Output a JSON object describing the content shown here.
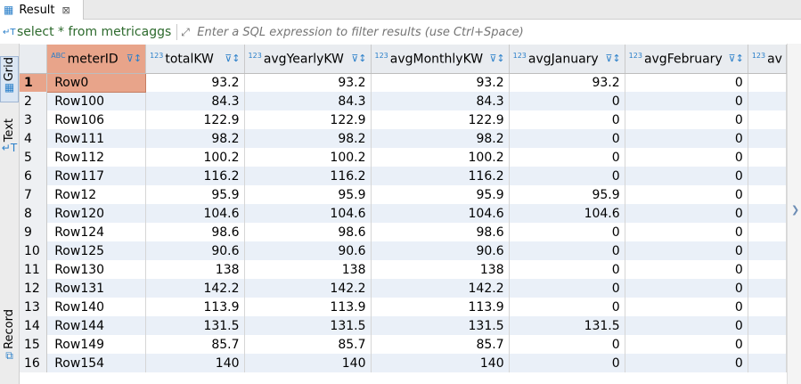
{
  "tab": {
    "title": "Result",
    "close": "⊠"
  },
  "filter": {
    "sql": "select * from metricaggs",
    "placeholder": "Enter a SQL expression to filter results (use Ctrl+Space)"
  },
  "side_tabs": {
    "grid": "Grid",
    "text": "Text",
    "record": "Record"
  },
  "columns": [
    {
      "label": "meterID",
      "type": "ABC"
    },
    {
      "label": "totalKW",
      "type": "123"
    },
    {
      "label": "avgYearlyKW",
      "type": "123"
    },
    {
      "label": "avgMonthlyKW",
      "type": "123"
    },
    {
      "label": "avgJanuary",
      "type": "123"
    },
    {
      "label": "avgFebruary",
      "type": "123"
    },
    {
      "label": "av",
      "type": "123"
    }
  ],
  "rows": [
    {
      "n": "1",
      "cells": [
        "Row0",
        "93.2",
        "93.2",
        "93.2",
        "93.2",
        "0"
      ]
    },
    {
      "n": "2",
      "cells": [
        "Row100",
        "84.3",
        "84.3",
        "84.3",
        "0",
        "0"
      ]
    },
    {
      "n": "3",
      "cells": [
        "Row106",
        "122.9",
        "122.9",
        "122.9",
        "0",
        "0"
      ]
    },
    {
      "n": "4",
      "cells": [
        "Row111",
        "98.2",
        "98.2",
        "98.2",
        "0",
        "0"
      ]
    },
    {
      "n": "5",
      "cells": [
        "Row112",
        "100.2",
        "100.2",
        "100.2",
        "0",
        "0"
      ]
    },
    {
      "n": "6",
      "cells": [
        "Row117",
        "116.2",
        "116.2",
        "116.2",
        "0",
        "0"
      ]
    },
    {
      "n": "7",
      "cells": [
        "Row12",
        "95.9",
        "95.9",
        "95.9",
        "95.9",
        "0"
      ]
    },
    {
      "n": "8",
      "cells": [
        "Row120",
        "104.6",
        "104.6",
        "104.6",
        "104.6",
        "0"
      ]
    },
    {
      "n": "9",
      "cells": [
        "Row124",
        "98.6",
        "98.6",
        "98.6",
        "0",
        "0"
      ]
    },
    {
      "n": "10",
      "cells": [
        "Row125",
        "90.6",
        "90.6",
        "90.6",
        "0",
        "0"
      ]
    },
    {
      "n": "11",
      "cells": [
        "Row130",
        "138",
        "138",
        "138",
        "0",
        "0"
      ]
    },
    {
      "n": "12",
      "cells": [
        "Row131",
        "142.2",
        "142.2",
        "142.2",
        "0",
        "0"
      ]
    },
    {
      "n": "13",
      "cells": [
        "Row140",
        "113.9",
        "113.9",
        "113.9",
        "0",
        "0"
      ]
    },
    {
      "n": "14",
      "cells": [
        "Row144",
        "131.5",
        "131.5",
        "131.5",
        "131.5",
        "0"
      ]
    },
    {
      "n": "15",
      "cells": [
        "Row149",
        "85.7",
        "85.7",
        "85.7",
        "0",
        "0"
      ]
    },
    {
      "n": "16",
      "cells": [
        "Row154",
        "140",
        "140",
        "140",
        "0",
        "0"
      ]
    }
  ],
  "colors": {
    "selected": "#e8a48a",
    "stripe": "#eaf0f8",
    "header": "#e9ecf0",
    "sql_text": "#2d6a2d"
  }
}
